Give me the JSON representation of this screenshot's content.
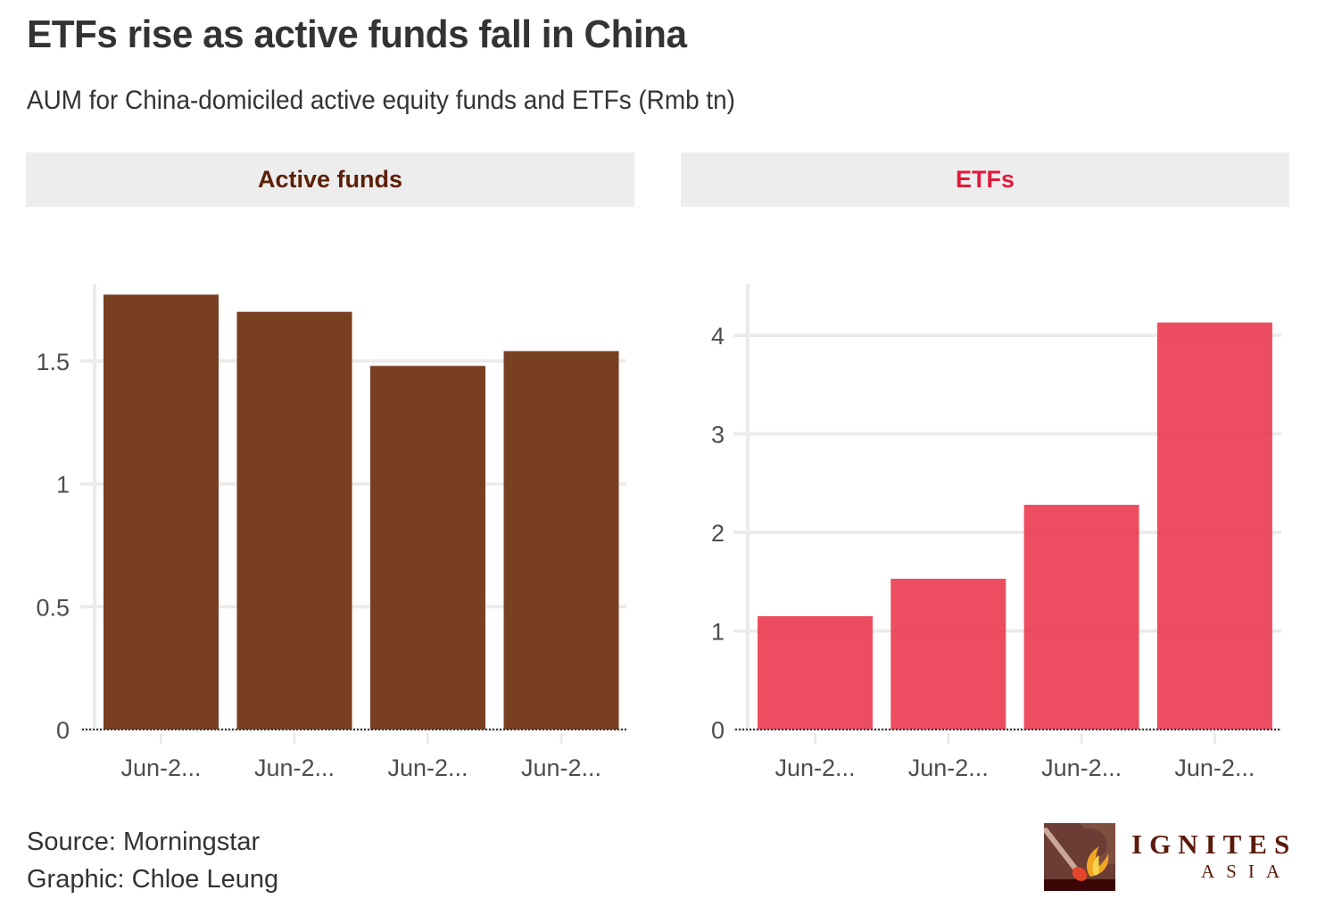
{
  "header": {
    "title": "ETFs rise as active funds fall in China",
    "subtitle": "AUM for China-domiciled active equity funds and ETFs (Rmb tn)"
  },
  "footer": {
    "source": "Source: Morningstar",
    "graphic": "Graphic: Chloe Leung"
  },
  "logo": {
    "name": "IGNITES",
    "sub": "ASIA",
    "icon": "match-flame-icon"
  },
  "colors": {
    "active": "#74391c",
    "etf": "#eb3a50",
    "active_strip_text": "#5c2008",
    "etf_strip_text": "#e2193b"
  },
  "chart_data": [
    {
      "type": "bar",
      "facet": "Active funds",
      "title": "Active funds",
      "xlabel": "",
      "ylabel": "",
      "categories": [
        "Jun-2...",
        "Jun-2...",
        "Jun-2...",
        "Jun-2..."
      ],
      "values": [
        1.77,
        1.7,
        1.48,
        1.54
      ],
      "yticks": [
        0,
        0.5,
        1,
        1.5
      ],
      "ytick_labels": [
        "0",
        "0.5",
        "1",
        "1.5"
      ],
      "ylim": [
        0,
        1.8
      ],
      "grid": true,
      "color": "#74391c"
    },
    {
      "type": "bar",
      "facet": "ETFs",
      "title": "ETFs",
      "xlabel": "",
      "ylabel": "",
      "categories": [
        "Jun-2...",
        "Jun-2...",
        "Jun-2...",
        "Jun-2..."
      ],
      "values": [
        1.15,
        1.53,
        2.28,
        4.13
      ],
      "yticks": [
        0,
        1,
        2,
        3,
        4
      ],
      "ytick_labels": [
        "0",
        "1",
        "2",
        "3",
        "4"
      ],
      "ylim": [
        0,
        4.5
      ],
      "grid": true,
      "color": "#eb3a50"
    }
  ]
}
